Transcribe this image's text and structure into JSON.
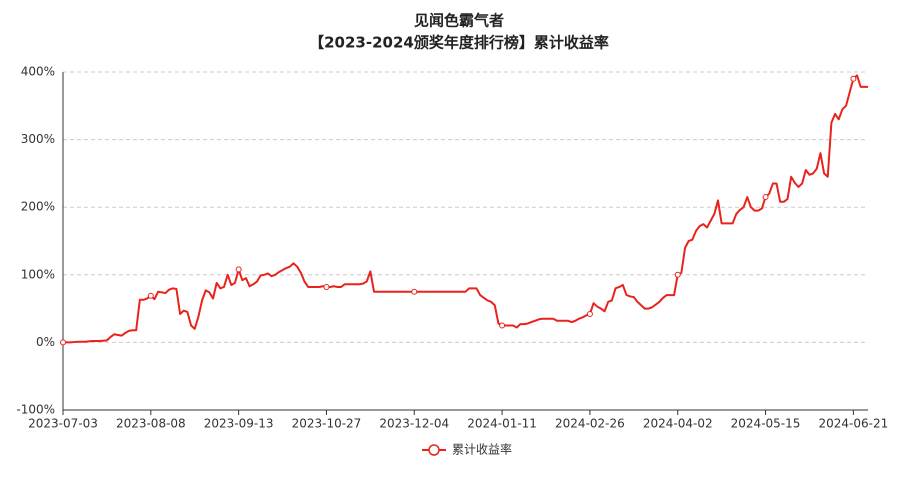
{
  "chart_data": {
    "type": "line",
    "title": "见闻色霸气者",
    "subtitle": "【2023-2024颁奖年度排行榜】累计收益率",
    "categories": [
      "2023-07-03",
      null,
      null,
      null,
      null,
      null,
      null,
      null,
      null,
      null,
      null,
      null,
      null,
      null,
      null,
      null,
      null,
      null,
      null,
      null,
      null,
      null,
      null,
      null,
      "2023-08-08",
      null,
      null,
      null,
      null,
      null,
      null,
      null,
      null,
      null,
      null,
      null,
      null,
      null,
      null,
      null,
      null,
      null,
      null,
      null,
      null,
      null,
      null,
      null,
      "2023-09-13",
      null,
      null,
      null,
      null,
      null,
      null,
      null,
      null,
      null,
      null,
      null,
      null,
      null,
      null,
      null,
      null,
      null,
      null,
      null,
      null,
      null,
      null,
      null,
      "2023-10-27",
      null,
      null,
      null,
      null,
      null,
      null,
      null,
      null,
      null,
      null,
      null,
      null,
      null,
      null,
      null,
      null,
      null,
      null,
      null,
      null,
      null,
      null,
      null,
      "2023-12-04",
      null,
      null,
      null,
      null,
      null,
      null,
      null,
      null,
      null,
      null,
      null,
      null,
      null,
      null,
      null,
      null,
      null,
      null,
      null,
      null,
      null,
      null,
      null,
      "2024-01-11",
      null,
      null,
      null,
      null,
      null,
      null,
      null,
      null,
      null,
      null,
      null,
      null,
      null,
      null,
      null,
      null,
      null,
      null,
      null,
      null,
      null,
      null,
      null,
      "2024-02-26",
      null,
      null,
      null,
      null,
      null,
      null,
      null,
      null,
      null,
      null,
      null,
      null,
      null,
      null,
      null,
      null,
      null,
      null,
      null,
      null,
      null,
      null,
      null,
      "2024-04-02",
      null,
      null,
      null,
      null,
      null,
      null,
      null,
      null,
      null,
      null,
      null,
      null,
      null,
      null,
      null,
      null,
      null,
      null,
      null,
      null,
      null,
      null,
      null,
      "2024-05-15",
      null,
      null,
      null,
      null,
      null,
      null,
      null,
      null,
      null,
      null,
      null,
      null,
      null,
      null,
      null,
      null,
      null,
      null,
      null,
      null,
      null,
      null,
      null,
      "2024-06-21",
      null,
      null,
      null,
      null
    ],
    "series": [
      {
        "name": "累计收益率",
        "color": "#e8231c",
        "values": [
          0,
          0,
          0,
          0.5,
          1,
          1,
          1,
          1.5,
          2,
          2,
          2,
          2.5,
          3,
          8,
          12,
          11,
          10,
          14,
          17,
          18,
          18,
          63,
          63,
          65,
          69,
          64,
          75,
          74,
          73,
          78,
          80,
          79,
          42,
          47,
          45,
          25,
          20,
          38,
          62,
          77,
          74,
          65,
          88,
          80,
          82,
          100,
          85,
          88,
          108,
          92,
          95,
          83,
          86,
          90,
          99,
          100,
          102,
          98,
          100,
          104,
          107,
          110,
          112,
          117,
          112,
          103,
          90,
          82,
          82,
          82,
          82,
          83,
          82,
          82,
          83,
          82,
          82,
          86,
          86,
          86,
          86,
          86,
          87,
          90,
          105,
          75,
          75,
          75,
          75,
          75,
          75,
          75,
          75,
          75,
          75,
          75,
          75,
          75,
          75,
          75,
          75,
          75,
          75,
          75,
          75,
          75,
          75,
          75,
          75,
          75,
          75,
          80,
          80,
          80,
          70,
          66,
          62,
          60,
          55,
          28,
          25,
          25,
          25,
          25,
          22,
          27,
          27,
          28,
          30,
          32,
          34,
          35,
          35,
          35,
          35,
          32,
          32,
          32,
          32,
          30,
          32,
          35,
          37,
          40,
          42,
          58,
          53,
          50,
          46,
          60,
          62,
          80,
          82,
          85,
          70,
          68,
          67,
          60,
          55,
          50,
          50,
          52,
          56,
          60,
          66,
          70,
          70,
          70,
          100,
          103,
          140,
          150,
          152,
          165,
          172,
          175,
          170,
          180,
          190,
          210,
          176,
          176,
          176,
          176,
          190,
          196,
          200,
          215,
          200,
          195,
          195,
          198,
          215,
          220,
          235,
          235,
          208,
          208,
          212,
          245,
          236,
          230,
          235,
          255,
          248,
          250,
          257,
          280,
          250,
          245,
          325,
          338,
          330,
          345,
          350,
          370,
          390,
          395,
          378,
          378,
          378
        ]
      }
    ],
    "ylim": [
      -100,
      400
    ],
    "yticks": [
      {
        "value": -100,
        "label": "-100%"
      },
      {
        "value": 0,
        "label": "0%"
      },
      {
        "value": 100,
        "label": "100%"
      },
      {
        "value": 200,
        "label": "200%"
      },
      {
        "value": 300,
        "label": "300%"
      },
      {
        "value": 400,
        "label": "400%"
      }
    ],
    "grid": true,
    "legend": "bottom"
  }
}
